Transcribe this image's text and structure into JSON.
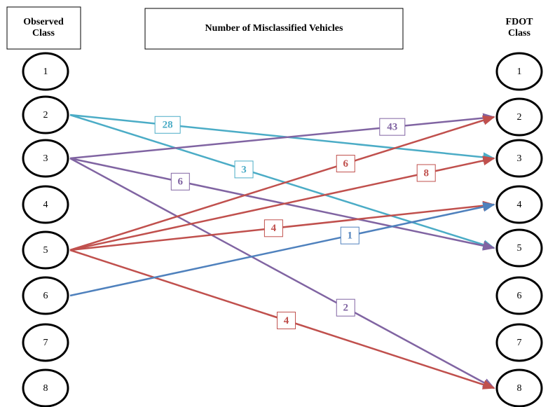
{
  "header": {
    "left_title": "Observed Class",
    "center_title": "Number of Misclassified Vehicles",
    "right_title": "FDOT Class"
  },
  "left_nodes": [
    "1",
    "2",
    "3",
    "4",
    "5",
    "6",
    "7",
    "8"
  ],
  "right_nodes": [
    "1",
    "2",
    "3",
    "4",
    "5",
    "6",
    "7",
    "8"
  ],
  "edges": [
    {
      "from": 2,
      "to": 3,
      "label": "28",
      "color": "#4bacc6"
    },
    {
      "from": 2,
      "to": 5,
      "label": "3",
      "color": "#4bacc6"
    },
    {
      "from": 3,
      "to": 2,
      "label": "43",
      "color": "#8064a2"
    },
    {
      "from": 3,
      "to": 5,
      "label": "6",
      "color": "#8064a2"
    },
    {
      "from": 3,
      "to": 8,
      "label": "2",
      "color": "#8064a2"
    },
    {
      "from": 5,
      "to": 2,
      "label": "6",
      "color": "#c0504d"
    },
    {
      "from": 5,
      "to": 3,
      "label": "8",
      "color": "#c0504d"
    },
    {
      "from": 5,
      "to": 4,
      "label": "4",
      "color": "#c0504d"
    },
    {
      "from": 5,
      "to": 8,
      "label": "4",
      "color": "#c0504d"
    },
    {
      "from": 6,
      "to": 4,
      "label": "1",
      "color": "#4f81bd"
    }
  ]
}
